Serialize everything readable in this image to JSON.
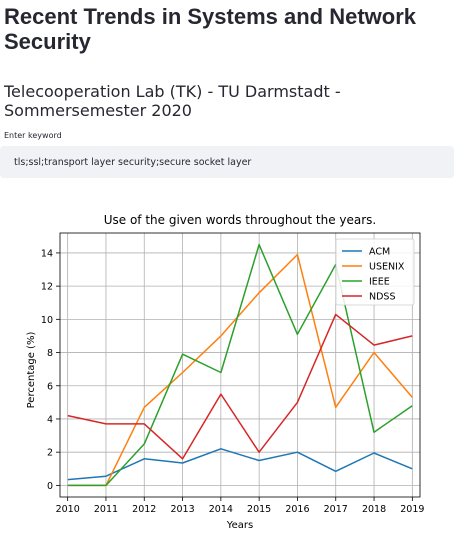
{
  "page": {
    "title": "Recent Trends in Systems and Network Security",
    "subtitle": "Telecooperation Lab (TK) - TU Darmstadt - Sommersemester 2020"
  },
  "keyword": {
    "label": "Enter keyword",
    "value": "tls;ssl;transport layer security;secure socket layer"
  },
  "chart_data": {
    "type": "line",
    "title": "Use of the given words throughout the years.",
    "xlabel": "Years",
    "ylabel": "Percentage (%)",
    "x": [
      2010,
      2011,
      2012,
      2013,
      2014,
      2015,
      2016,
      2017,
      2018,
      2019
    ],
    "xticks": [
      "2010",
      "2011",
      "2012",
      "2013",
      "2014",
      "2015",
      "2016",
      "2017",
      "2018",
      "2019"
    ],
    "yticks": [
      "0",
      "2",
      "4",
      "6",
      "8",
      "10",
      "12",
      "14"
    ],
    "xlim": [
      2009.8,
      2019.2
    ],
    "ylim": [
      -0.7,
      15.2
    ],
    "grid": true,
    "legend_position": "top-right",
    "series": [
      {
        "name": "ACM",
        "color": "#1f77b4",
        "values": [
          0.35,
          0.55,
          1.6,
          1.35,
          2.2,
          1.5,
          2.0,
          0.85,
          1.95,
          1.0
        ]
      },
      {
        "name": "USENIX",
        "color": "#ff7f0e",
        "values": [
          0.0,
          0.0,
          4.7,
          6.8,
          9.0,
          11.6,
          13.9,
          4.7,
          8.0,
          5.3
        ]
      },
      {
        "name": "IEEE",
        "color": "#2ca02c",
        "values": [
          0.0,
          0.0,
          2.5,
          7.9,
          6.8,
          14.5,
          9.1,
          13.3,
          3.2,
          4.8
        ]
      },
      {
        "name": "NDSS",
        "color": "#d62728",
        "values": [
          4.2,
          3.7,
          3.7,
          1.6,
          5.5,
          2.0,
          5.0,
          10.3,
          8.45,
          9.0
        ]
      }
    ]
  }
}
